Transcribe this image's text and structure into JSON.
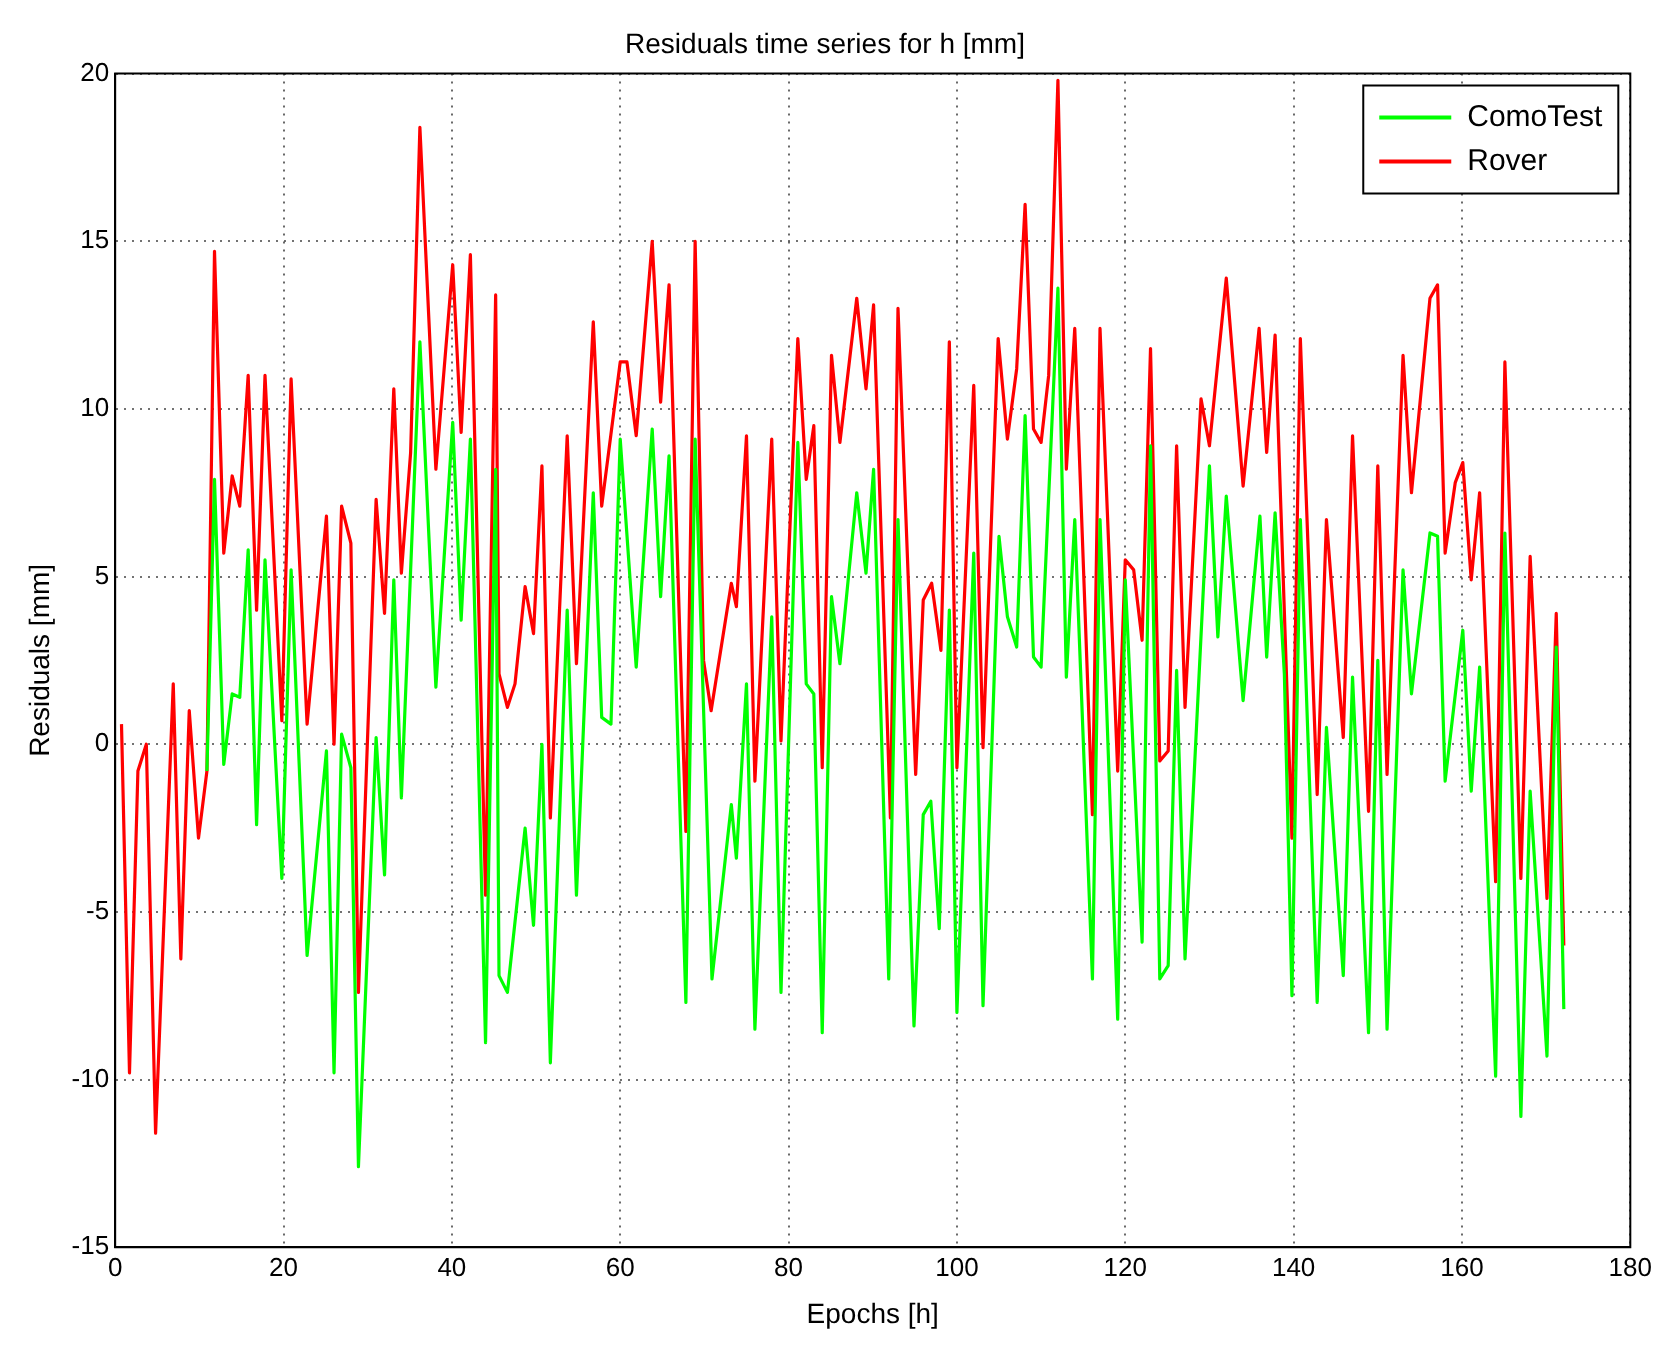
{
  "chart_data": {
    "type": "line",
    "title": "Residuals time series for h [mm]",
    "xlabel": "Epochs [h]",
    "ylabel": "Residuals [mm]",
    "xlim": [
      0,
      180
    ],
    "xticks": [
      0,
      20,
      40,
      60,
      80,
      100,
      120,
      140,
      160,
      180
    ],
    "ylim": [
      -15,
      20
    ],
    "yticks": [
      -15,
      -10,
      -5,
      0,
      5,
      10,
      15,
      20
    ],
    "grid": true,
    "legend": "top right",
    "marker": "none",
    "line_style": "solid",
    "series": [
      {
        "name": "ComoTest",
        "color": "#00ff00",
        "x": [
          10.9,
          11.8,
          12.9,
          13.9,
          14.8,
          15.8,
          16.8,
          17.8,
          19.8,
          20.9,
          22.8,
          25.1,
          26,
          26.9,
          28,
          28.9,
          31,
          32,
          33.1,
          34,
          36.2,
          38.1,
          40.1,
          41.1,
          42.2,
          44,
          45.2,
          45.6,
          46.6,
          48.7,
          49.7,
          50.7,
          51.7,
          53.7,
          54.8,
          56.8,
          57.8,
          58.9,
          60,
          61.9,
          63.8,
          64.8,
          65.8,
          67.8,
          68.9,
          70.9,
          73.2,
          73.8,
          75,
          76,
          78,
          79.1,
          81.1,
          82.1,
          83,
          84,
          85.1,
          86.1,
          88.1,
          89.2,
          90.1,
          91.9,
          93,
          94.9,
          96,
          96.9,
          97.9,
          99.1,
          100,
          102,
          103.1,
          105,
          106,
          107.1,
          108.1,
          109.1,
          110,
          112,
          113,
          114,
          116.1,
          117,
          119.1,
          120,
          122,
          123,
          124.1,
          125.1,
          126.1,
          127.1,
          130,
          131,
          132,
          134,
          136,
          136.8,
          137.8,
          138.9,
          139.8,
          140.8,
          142.8,
          143.9,
          145.9,
          147,
          148.9,
          150,
          151.1,
          153,
          154,
          156.2,
          157.1,
          158,
          160.1,
          161.1,
          162.1,
          164,
          165.1,
          167,
          168.1,
          170.1,
          171.2,
          172.1
        ],
        "values": [
          -0.8,
          7.9,
          -0.6,
          1.5,
          1.4,
          5.8,
          -2.4,
          5.5,
          -4.0,
          5.2,
          -6.3,
          -0.2,
          -9.8,
          0.3,
          -0.7,
          -12.6,
          0.2,
          -3.9,
          4.9,
          -1.6,
          12.0,
          1.7,
          9.6,
          3.7,
          9.1,
          -8.9,
          8.2,
          -6.9,
          -7.4,
          -2.5,
          -5.4,
          0.0,
          -9.5,
          4.0,
          -4.5,
          7.5,
          0.8,
          0.6,
          9.1,
          2.3,
          9.4,
          4.4,
          8.6,
          -7.7,
          9.1,
          -7.0,
          -1.8,
          -3.4,
          1.8,
          -8.5,
          3.8,
          -7.4,
          9.0,
          1.8,
          1.5,
          -8.6,
          4.4,
          2.4,
          7.5,
          5.1,
          8.2,
          -7.0,
          6.7,
          -8.4,
          -2.1,
          -1.7,
          -5.5,
          4.0,
          -8.0,
          5.7,
          -7.8,
          6.2,
          3.8,
          2.9,
          9.8,
          2.6,
          2.3,
          13.6,
          2.0,
          6.7,
          -7.0,
          6.7,
          -8.2,
          4.9,
          -5.9,
          8.9,
          -7.0,
          -6.6,
          2.2,
          -6.4,
          8.3,
          3.2,
          7.4,
          1.3,
          6.8,
          2.6,
          6.9,
          2.1,
          -7.5,
          6.7,
          -7.7,
          0.5,
          -6.9,
          2.0,
          -8.6,
          2.5,
          -8.5,
          5.2,
          1.5,
          6.3,
          6.2,
          -1.1,
          3.4,
          -1.4,
          2.3,
          -9.9,
          6.3,
          -11.1,
          -1.4,
          -9.3,
          2.9,
          -7.9
        ]
      },
      {
        "name": "Rover",
        "color": "#ff0000",
        "x": [
          0.75,
          1.7,
          2.7,
          3.7,
          4.8,
          6.9,
          7.8,
          8.8,
          9.9,
          10.9,
          11.8,
          12.9,
          13.9,
          14.8,
          15.8,
          16.8,
          17.8,
          19.8,
          20.9,
          22.8,
          25.1,
          26,
          26.9,
          28,
          28.9,
          31,
          32,
          33.1,
          34,
          35.1,
          36.2,
          38.1,
          40.1,
          41.1,
          42.2,
          44,
          45.2,
          45.6,
          46.6,
          47.5,
          48.7,
          49.7,
          50.7,
          51.7,
          53.7,
          54.8,
          56.8,
          57.8,
          60,
          60.8,
          61.9,
          63.8,
          64.8,
          65.8,
          67.8,
          68.9,
          69.9,
          70.8,
          73.2,
          73.8,
          75,
          76,
          78,
          79.1,
          81.1,
          82.1,
          83,
          84,
          85.1,
          86.1,
          88.1,
          89.2,
          90.1,
          92.1,
          93,
          95.1,
          96,
          97,
          98.1,
          99.1,
          100,
          102,
          103.1,
          104.9,
          106,
          107.1,
          108.1,
          109.1,
          110,
          110.9,
          112,
          113,
          114,
          116.1,
          117,
          119.1,
          120,
          121,
          122,
          123,
          124.1,
          125.1,
          126.1,
          127.1,
          129,
          130,
          132,
          134,
          135.9,
          136.8,
          137.8,
          139.8,
          140.8,
          142.8,
          143.9,
          145.9,
          147,
          148.9,
          150,
          151.1,
          153,
          154,
          156.2,
          157.1,
          158,
          159.2,
          160.1,
          161.1,
          162.1,
          164,
          165.1,
          167,
          168.1,
          170.1,
          171.2,
          172.1
        ],
        "values": [
          0.6,
          -9.8,
          -0.8,
          0,
          -11.6,
          1.8,
          -6.4,
          1.0,
          -2.8,
          -0.8,
          14.7,
          5.7,
          8.0,
          7.1,
          11.0,
          4.0,
          11.0,
          0.7,
          10.9,
          0.6,
          6.8,
          0,
          7.1,
          6.0,
          -7.4,
          7.3,
          3.9,
          10.6,
          5.1,
          8.7,
          18.4,
          8.2,
          14.3,
          9.3,
          14.6,
          -4.5,
          13.4,
          2.1,
          1.1,
          1.8,
          4.7,
          3.3,
          8.3,
          -2.2,
          9.2,
          2.4,
          12.6,
          7.1,
          11.4,
          11.4,
          9.2,
          15.0,
          10.2,
          13.7,
          -2.6,
          15.0,
          2.5,
          1.0,
          4.8,
          4.1,
          9.2,
          -1.1,
          9.1,
          0.1,
          12.1,
          7.9,
          9.5,
          -0.7,
          11.6,
          9.0,
          13.3,
          10.6,
          13.1,
          -2.2,
          13.0,
          -0.9,
          4.3,
          4.8,
          2.8,
          12.0,
          -0.7,
          10.7,
          -0.1,
          12.1,
          9.1,
          11.2,
          16.1,
          9.4,
          9.0,
          11.0,
          19.8,
          8.2,
          12.4,
          -2.1,
          12.4,
          -0.8,
          5.5,
          5.2,
          3.1,
          11.8,
          -0.5,
          -0.2,
          8.9,
          1.1,
          10.3,
          8.9,
          13.9,
          7.7,
          12.4,
          8.7,
          12.2,
          -2.8,
          12.1,
          -1.5,
          6.7,
          0.2,
          9.2,
          -2.0,
          8.3,
          -0.9,
          11.6,
          7.5,
          13.3,
          13.7,
          5.7,
          7.8,
          8.4,
          4.9,
          7.5,
          -4.1,
          11.4,
          -4.0,
          5.6,
          -4.6,
          3.9,
          -6.0
        ]
      }
    ]
  }
}
